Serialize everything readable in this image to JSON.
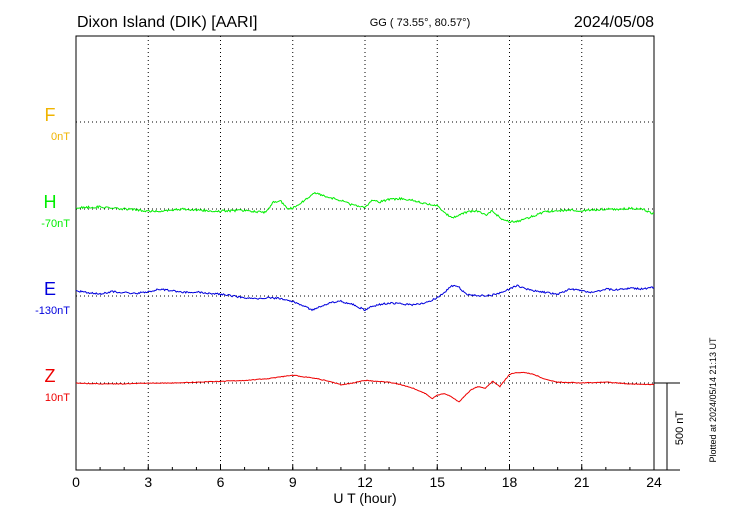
{
  "header": {
    "station": "Dixon Island (DIK)  [AARI]",
    "coords": "GG ( 73.55°,  80.57°)",
    "date": "2024/05/08"
  },
  "side_note": "Plotted at 2024/05/14 21:13 UT",
  "chart_data": {
    "type": "line",
    "xlabel": "U T (hour)",
    "xlim": [
      0,
      24
    ],
    "x_ticks": [
      "0",
      "3",
      "6",
      "9",
      "12",
      "15",
      "18",
      "21",
      "24"
    ],
    "scale_bar": {
      "label": "500 nT",
      "value_nT": 500
    },
    "series": [
      {
        "name": "F",
        "baseline": "0nT",
        "color": "#f0b400",
        "x": [],
        "values": []
      },
      {
        "name": "H",
        "baseline": "-70nT",
        "color": "#00ee00",
        "x": [
          0,
          0.5,
          1,
          1.5,
          2,
          2.5,
          3,
          3.5,
          4,
          4.5,
          5,
          5.5,
          6,
          6.5,
          7,
          7.5,
          7.8,
          8,
          8.2,
          8.5,
          8.8,
          9,
          9.3,
          9.6,
          9.9,
          10.2,
          10.5,
          11,
          11.5,
          12,
          12.3,
          12.6,
          13,
          13.5,
          14,
          14.5,
          15,
          15.3,
          15.6,
          16,
          16.3,
          16.6,
          17,
          17.3,
          17.6,
          18,
          18.5,
          19,
          19.5,
          20,
          20.5,
          21,
          21.5,
          22,
          22.5,
          23,
          23.5,
          24
        ],
        "values": [
          5,
          10,
          12,
          5,
          0,
          -5,
          -12,
          -10,
          -5,
          0,
          -5,
          -10,
          -12,
          -10,
          -8,
          -15,
          -20,
          0,
          40,
          45,
          0,
          5,
          30,
          60,
          90,
          80,
          65,
          50,
          20,
          10,
          50,
          40,
          55,
          60,
          50,
          30,
          20,
          -20,
          -50,
          -30,
          -15,
          -10,
          -35,
          -10,
          -50,
          -75,
          -65,
          -40,
          -15,
          -10,
          -5,
          -10,
          -5,
          0,
          -5,
          5,
          0,
          -30
        ]
      },
      {
        "name": "E",
        "baseline": "-130nT",
        "color": "#0000dd",
        "x": [
          0,
          0.5,
          1,
          1.5,
          2,
          2.5,
          3,
          3.5,
          4,
          4.5,
          5,
          5.5,
          6,
          6.5,
          7,
          7.5,
          8,
          8.5,
          9,
          9.5,
          9.8,
          10,
          10.5,
          11,
          11.5,
          12,
          12.3,
          12.6,
          13,
          13.5,
          14,
          14.5,
          15,
          15.3,
          15.6,
          15.9,
          16.2,
          16.5,
          17,
          17.5,
          18,
          18.3,
          18.6,
          19,
          19.5,
          20,
          20.5,
          21,
          21.5,
          22,
          22.5,
          23,
          23.5,
          24
        ],
        "values": [
          30,
          20,
          10,
          25,
          20,
          15,
          25,
          40,
          30,
          20,
          25,
          15,
          10,
          0,
          -10,
          -15,
          -10,
          -15,
          -30,
          -60,
          -80,
          -70,
          -40,
          -30,
          -50,
          -80,
          -60,
          -50,
          -40,
          -45,
          -50,
          -40,
          -10,
          20,
          60,
          50,
          10,
          5,
          0,
          10,
          40,
          60,
          45,
          30,
          20,
          10,
          40,
          30,
          20,
          40,
          35,
          45,
          40,
          50
        ]
      },
      {
        "name": "Z",
        "baseline": "10nT",
        "color": "#ee0000",
        "x": [
          0,
          1,
          2,
          3,
          4,
          5,
          6,
          7,
          7.5,
          8,
          8.5,
          9,
          9.5,
          10,
          10.5,
          11,
          11.5,
          12,
          12.5,
          13,
          13.5,
          14,
          14.5,
          14.8,
          15,
          15.3,
          15.6,
          15.9,
          16.1,
          16.4,
          16.7,
          17,
          17.3,
          17.6,
          18,
          18.3,
          18.6,
          19,
          19.5,
          20,
          21,
          22,
          23,
          24
        ],
        "values": [
          0,
          -5,
          -5,
          0,
          0,
          5,
          10,
          15,
          20,
          25,
          35,
          45,
          35,
          25,
          10,
          -10,
          0,
          15,
          10,
          5,
          -10,
          -30,
          -60,
          -90,
          -70,
          -60,
          -80,
          -110,
          -80,
          -40,
          -20,
          -30,
          10,
          -20,
          50,
          60,
          60,
          50,
          20,
          5,
          0,
          5,
          -5,
          -10
        ]
      }
    ]
  }
}
